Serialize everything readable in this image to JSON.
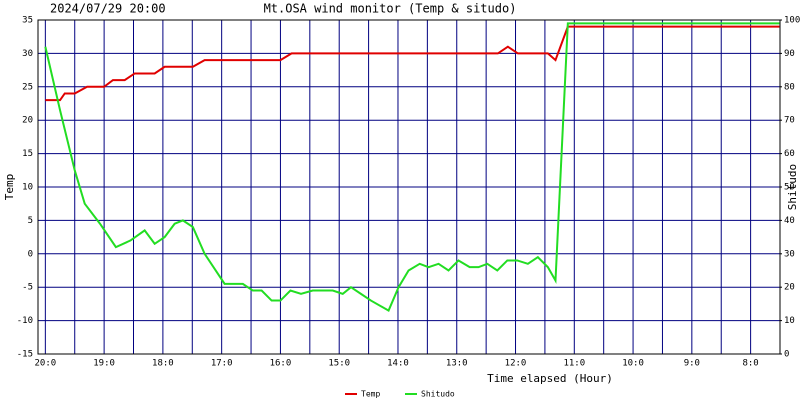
{
  "chart_data": {
    "type": "line",
    "title": "2024/07/29 20:00",
    "subtitle": "Mt.OSA wind monitor (Temp & situdo)",
    "x_label": "Time elapsed (Hour)",
    "y_label": "Temp",
    "y2_label": "Shitudo",
    "xlim": [
      -0.125,
      12.5
    ],
    "xticks": [
      {
        "value": 0,
        "label": "20:0"
      },
      {
        "value": 1,
        "label": "19:0"
      },
      {
        "value": 2,
        "label": "18:0"
      },
      {
        "value": 3,
        "label": "17:0"
      },
      {
        "value": 4,
        "label": "16:0"
      },
      {
        "value": 5,
        "label": "15:0"
      },
      {
        "value": 6,
        "label": "14:0"
      },
      {
        "value": 7,
        "label": "13:0"
      },
      {
        "value": 8,
        "label": "12:0"
      },
      {
        "value": 9,
        "label": "11:0"
      },
      {
        "value": 10,
        "label": "10:0"
      },
      {
        "value": 11,
        "label": "9:0"
      },
      {
        "value": 12,
        "label": "8:0"
      }
    ],
    "xminor": [
      0.5,
      1.5,
      2.5,
      3.5,
      4.5,
      5.5,
      6.5,
      7.5,
      8.5,
      9.5,
      10.5,
      11.5
    ],
    "ylim": [
      -15,
      35
    ],
    "yticks": [
      -15,
      -10,
      -5,
      0,
      5,
      10,
      15,
      20,
      25,
      30,
      35
    ],
    "y2lim": [
      0,
      100
    ],
    "y2ticks": [
      0,
      10,
      20,
      30,
      40,
      50,
      60,
      70,
      80,
      90,
      100
    ],
    "grid": true,
    "grid_color": "#000080",
    "legend": "bottom",
    "series": [
      {
        "name": "Temp",
        "color": "#e00000",
        "x": [
          0,
          0.25,
          0.33,
          0.5,
          0.71,
          1.0,
          1.15,
          1.35,
          1.52,
          1.86,
          2.03,
          2.51,
          2.71,
          4.0,
          4.19,
          7.7,
          7.87,
          8.04,
          8.55,
          8.68,
          8.89,
          12.49
        ],
        "values": [
          23,
          23,
          24,
          24,
          25,
          25,
          26,
          26,
          27,
          27,
          28,
          28,
          29,
          29,
          30,
          30,
          31,
          30,
          30,
          29,
          34,
          34
        ]
      },
      {
        "name": "Shitudo",
        "color": "#22dd22",
        "axis": "y2",
        "x": [
          0,
          0.25,
          0.5,
          0.67,
          0.93,
          1.2,
          1.45,
          1.69,
          1.86,
          2.03,
          2.2,
          2.34,
          2.51,
          2.71,
          3.05,
          3.36,
          3.53,
          3.68,
          3.85,
          4.0,
          4.17,
          4.35,
          4.55,
          4.89,
          5.06,
          5.2,
          5.37,
          5.54,
          5.84,
          6.01,
          6.18,
          6.37,
          6.52,
          6.69,
          6.86,
          7.03,
          7.22,
          7.37,
          7.52,
          7.69,
          7.86,
          8.03,
          8.21,
          8.38,
          8.55,
          8.68,
          8.89,
          12.49
        ],
        "values": [
          92,
          73,
          55,
          45,
          39,
          32,
          34,
          37,
          33,
          35,
          39,
          40,
          38,
          30,
          21,
          21,
          19,
          19,
          16,
          16,
          19,
          18,
          19,
          19,
          18,
          20,
          18,
          16,
          13,
          20,
          25,
          27,
          26,
          27,
          25,
          28,
          26,
          26,
          27,
          25,
          28,
          28,
          27,
          29,
          26,
          22,
          99,
          99
        ]
      }
    ]
  }
}
